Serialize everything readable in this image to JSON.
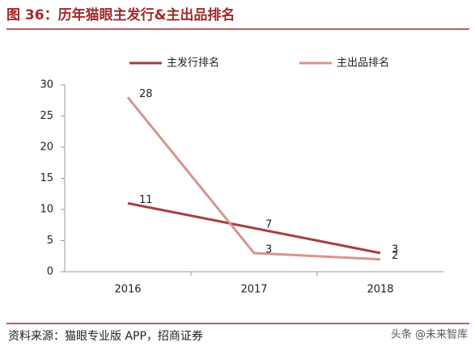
{
  "chart_data": {
    "type": "line",
    "title": "图 36：历年猫眼主发行&主出品排名",
    "categories": [
      "2016",
      "2017",
      "2018"
    ],
    "series": [
      {
        "name": "主发行排名",
        "color": "#a4403f",
        "values": [
          11,
          7,
          3
        ]
      },
      {
        "name": "主出品排名",
        "color": "#d5958f",
        "values": [
          28,
          3,
          2
        ]
      }
    ],
    "ylim": [
      0,
      30
    ],
    "yticks": [
      0,
      5,
      10,
      15,
      20,
      25,
      30
    ],
    "grid": false,
    "legend": "top",
    "source": "资料来源：猫眼专业版 APP，招商证券",
    "watermark": "头条 @未来智库"
  }
}
